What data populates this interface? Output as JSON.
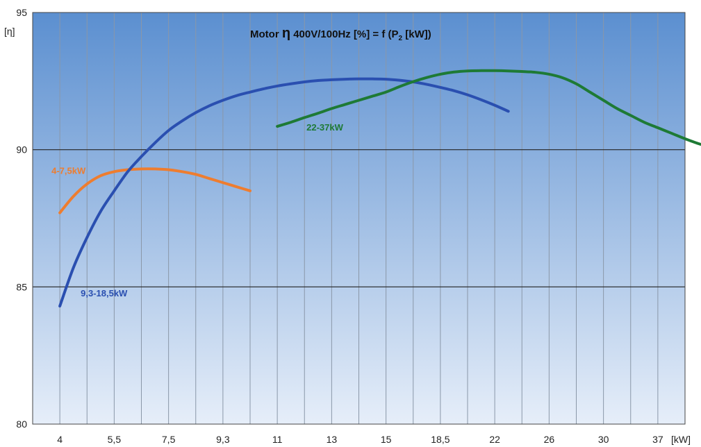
{
  "chart_data": {
    "type": "line",
    "title": {
      "prefix": "Motor ",
      "eta": "η",
      "mid": " 400V/100Hz  [%] = f (P",
      "sub": "2",
      "suffix": " [kW])"
    },
    "ylabel": "[η]",
    "xlabel": "[kW]",
    "ylim": [
      80,
      95
    ],
    "yticks": [
      "80",
      "85",
      "90",
      "95"
    ],
    "yticks_values": [
      80,
      85,
      90,
      95
    ],
    "categories": [
      "4",
      "5,5",
      "7,5",
      "9,3",
      "11",
      "13",
      "15",
      "18,5",
      "22",
      "26",
      "30",
      "37"
    ],
    "grid": true,
    "background": {
      "top": "#5b8fd0",
      "bottom": "#e6eef9"
    },
    "series": [
      {
        "name": "4-7,5kW",
        "color": "#ee7d2f",
        "x": [
          0,
          0.5,
          1,
          1.5,
          2,
          2.5,
          3,
          3.5,
          4,
          4.5,
          5,
          5.5,
          6,
          6.5,
          7
        ],
        "y": [
          87.7,
          88.3,
          88.75,
          89.05,
          89.2,
          89.27,
          89.3,
          89.3,
          89.27,
          89.2,
          89.1,
          88.95,
          88.8,
          88.65,
          88.5
        ]
      },
      {
        "name": "9,3-18,5kW",
        "color": "#2a4fb0",
        "x": [
          0,
          0.5,
          1,
          1.5,
          2,
          2.5,
          3,
          3.5,
          4,
          4.5,
          5,
          5.5,
          6,
          6.5,
          7,
          7.5,
          8,
          8.5,
          9,
          9.5,
          10,
          10.5,
          11,
          11.5,
          12,
          12.5,
          13,
          13.5,
          14,
          14.5,
          15,
          15.5,
          16,
          16.5
        ],
        "y": [
          84.3,
          85.7,
          86.8,
          87.75,
          88.5,
          89.2,
          89.75,
          90.25,
          90.7,
          91.05,
          91.35,
          91.6,
          91.8,
          91.97,
          92.1,
          92.22,
          92.32,
          92.4,
          92.47,
          92.52,
          92.55,
          92.57,
          92.58,
          92.58,
          92.57,
          92.53,
          92.47,
          92.38,
          92.27,
          92.15,
          92.0,
          91.82,
          91.62,
          91.4
        ]
      },
      {
        "name": "22-37kW",
        "color": "#1e7a35",
        "x": [
          8,
          8.5,
          9,
          9.5,
          10,
          10.5,
          11,
          11.5,
          12,
          12.5,
          13,
          13.5,
          14,
          14.5,
          15,
          15.5,
          16,
          16.5,
          17,
          17.5,
          18,
          18.5,
          19,
          19.5,
          20,
          20.5,
          21,
          21.5,
          22,
          22.5,
          23,
          23.5,
          24
        ],
        "y": [
          90.85,
          91.0,
          91.17,
          91.33,
          91.5,
          91.65,
          91.8,
          91.95,
          92.1,
          92.3,
          92.48,
          92.63,
          92.75,
          92.83,
          92.87,
          92.88,
          92.88,
          92.87,
          92.85,
          92.82,
          92.75,
          92.62,
          92.4,
          92.1,
          91.8,
          91.5,
          91.25,
          91.0,
          90.8,
          90.6,
          90.4,
          90.22,
          90.08
        ]
      }
    ]
  }
}
